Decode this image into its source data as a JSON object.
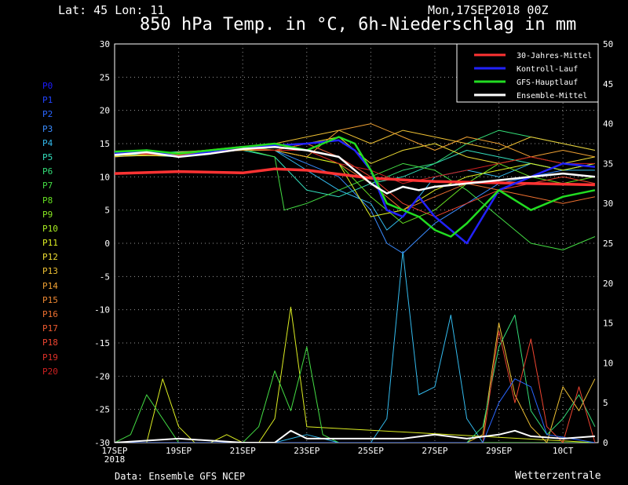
{
  "header": {
    "location": "Lat: 45 Lon: 11",
    "run": "Mon,17SEP2018 00Z",
    "title": "850 hPa Temp. in °C, 6h-Niederschlag in mm"
  },
  "footer": {
    "source": "Data: Ensemble GFS NCEP",
    "brand": "Wetterzentrale"
  },
  "members": [
    {
      "label": "P0",
      "color": "#1c1cff"
    },
    {
      "label": "P1",
      "color": "#2244ff"
    },
    {
      "label": "P2",
      "color": "#2a66ff"
    },
    {
      "label": "P3",
      "color": "#3a8cff"
    },
    {
      "label": "P4",
      "color": "#33bbee"
    },
    {
      "label": "P5",
      "color": "#33ddbb"
    },
    {
      "label": "P6",
      "color": "#33dd77"
    },
    {
      "label": "P7",
      "color": "#44dd44"
    },
    {
      "label": "P8",
      "color": "#66e022"
    },
    {
      "label": "P9",
      "color": "#88e622"
    },
    {
      "label": "P10",
      "color": "#aaee22"
    },
    {
      "label": "P11",
      "color": "#ddee22"
    },
    {
      "label": "P12",
      "color": "#eedd33"
    },
    {
      "label": "P13",
      "color": "#eec033"
    },
    {
      "label": "P14",
      "color": "#eea033"
    },
    {
      "label": "P15",
      "color": "#ee8833"
    },
    {
      "label": "P16",
      "color": "#ee7030"
    },
    {
      "label": "P17",
      "color": "#ee5a30"
    },
    {
      "label": "P18",
      "color": "#ee4430"
    },
    {
      "label": "P19",
      "color": "#dd3028"
    },
    {
      "label": "P20",
      "color": "#cc2020"
    }
  ],
  "chart_data": {
    "type": "line",
    "x_axis": {
      "labels": [
        "17SEP",
        "19SEP",
        "21SEP",
        "23SEP",
        "25SEP",
        "27SEP",
        "29SEP",
        "10CT"
      ],
      "year_label": "2018",
      "day_range": [
        0,
        15.1
      ]
    },
    "y_left": {
      "ticks": [
        30,
        25,
        20,
        15,
        10,
        5,
        0,
        -5,
        -10,
        -15,
        -20,
        -25,
        -30
      ],
      "range": [
        -30,
        30
      ]
    },
    "y_right": {
      "ticks": [
        50,
        45,
        40,
        35,
        30,
        25,
        20,
        15,
        10,
        5,
        0
      ],
      "range": [
        0,
        50
      ]
    },
    "grid": "dotted",
    "legend_position": "top-right",
    "legend": [
      {
        "label": "30-Jahres-Mittel",
        "color": "#ff3333"
      },
      {
        "label": "Kontroll-Lauf",
        "color": "#2222ff"
      },
      {
        "label": "GFS-Hauptlauf",
        "color": "#22dd22"
      },
      {
        "label": "Ensemble-Mittel",
        "color": "#ffffff"
      }
    ],
    "temperature_series": [
      {
        "name": "30-Jahres-Mittel",
        "color": "#ff3333",
        "x": [
          0,
          2,
          4,
          5,
          6,
          8,
          10,
          12,
          14,
          15
        ],
        "y": [
          10.5,
          10.8,
          10.6,
          11.2,
          11.0,
          9.8,
          9.3,
          9.1,
          8.9,
          8.8
        ]
      },
      {
        "name": "Kontroll-Lauf",
        "color": "#2222ff",
        "x": [
          0,
          1,
          2,
          3,
          4,
          5,
          6,
          7,
          7.5,
          8,
          8.5,
          9,
          9.5,
          10,
          10.5,
          11,
          12,
          13,
          14,
          15
        ],
        "y": [
          13.5,
          14,
          13,
          13.8,
          14.5,
          14.7,
          15,
          15.5,
          14,
          11,
          5,
          4,
          7,
          4,
          2,
          0,
          8,
          10,
          12,
          11.5
        ]
      },
      {
        "name": "GFS-Hauptlauf",
        "color": "#22dd22",
        "x": [
          0,
          1,
          2,
          3,
          4,
          5,
          6,
          7,
          7.5,
          8,
          8.5,
          9,
          9.5,
          10,
          10.5,
          11,
          12,
          13,
          14,
          15
        ],
        "y": [
          13.8,
          14,
          13.5,
          14,
          14.5,
          15,
          14,
          16,
          15,
          11,
          6,
          5,
          4,
          2,
          1,
          3,
          8,
          5,
          7,
          8
        ]
      },
      {
        "name": "Ensemble-Mittel",
        "color": "#ffffff",
        "x": [
          0,
          1,
          2,
          3,
          4,
          5,
          6,
          7,
          7.5,
          8,
          8.5,
          9,
          9.5,
          10,
          11,
          12,
          13,
          14,
          15
        ],
        "y": [
          13.3,
          13.7,
          13,
          13.5,
          14.2,
          14.5,
          14,
          13,
          11,
          9,
          7.5,
          8.5,
          8,
          8.5,
          9,
          9.5,
          10,
          10.5,
          10
        ]
      },
      {
        "name": "P3",
        "color": "#3a8cff",
        "x": [
          0,
          2,
          4,
          5,
          6,
          7,
          8,
          8.5,
          9,
          10,
          11,
          12,
          13,
          14,
          15
        ],
        "y": [
          13,
          13.5,
          14,
          14,
          12,
          10,
          5,
          0,
          -1.5,
          3,
          6,
          9,
          10,
          11,
          12
        ]
      },
      {
        "name": "P4",
        "color": "#33bbee",
        "x": [
          0,
          2,
          4,
          5,
          6,
          7,
          8,
          8.5,
          9,
          10,
          11,
          12,
          13,
          14,
          15
        ],
        "y": [
          13.5,
          13,
          14.5,
          14,
          11,
          8,
          6,
          2,
          4,
          10,
          11,
          10,
          12,
          11,
          11
        ]
      },
      {
        "name": "P5",
        "color": "#33ddbb",
        "x": [
          0,
          2,
          4,
          5,
          6,
          7,
          8,
          9,
          10,
          11,
          12,
          13,
          14,
          15
        ],
        "y": [
          13.2,
          13.8,
          14,
          13,
          8,
          7,
          9,
          10,
          12,
          14,
          13,
          12,
          11,
          12
        ]
      },
      {
        "name": "P6",
        "color": "#33dd77",
        "x": [
          0,
          2,
          4,
          5,
          6,
          7,
          8,
          9,
          10,
          11,
          12,
          13,
          14,
          15
        ],
        "y": [
          13.6,
          13.4,
          14.2,
          14,
          15,
          13,
          9,
          11,
          12,
          15,
          17,
          16,
          15,
          14
        ]
      },
      {
        "name": "P7",
        "color": "#44dd44",
        "x": [
          0,
          2,
          4,
          5,
          5.3,
          6,
          7,
          8,
          9,
          10,
          11,
          12,
          13,
          14,
          15
        ],
        "y": [
          13.6,
          13.2,
          14.2,
          13,
          5,
          6,
          8,
          10,
          12,
          11,
          8,
          4,
          0,
          -1,
          1
        ]
      },
      {
        "name": "P8",
        "color": "#66e022",
        "x": [
          0,
          2,
          4,
          5,
          6,
          7,
          8,
          9,
          10,
          11,
          12,
          13,
          14,
          15
        ],
        "y": [
          13.4,
          13.6,
          14.6,
          14,
          13,
          12,
          7,
          3,
          5,
          9,
          12,
          10,
          9,
          10
        ]
      },
      {
        "name": "P11",
        "color": "#ddee22",
        "x": [
          0,
          2,
          4,
          5,
          6,
          7,
          8,
          9,
          10,
          11,
          12,
          13,
          14,
          15
        ],
        "y": [
          13.1,
          13.3,
          14.1,
          14,
          13,
          12,
          4,
          5,
          8,
          10,
          11,
          12,
          11,
          12
        ]
      },
      {
        "name": "P12",
        "color": "#eedd33",
        "x": [
          0,
          2,
          4,
          5,
          6,
          7,
          8,
          9,
          10,
          11,
          12,
          13,
          14,
          15
        ],
        "y": [
          13.3,
          13.1,
          14.3,
          14,
          15,
          16,
          12,
          14,
          15,
          13,
          12,
          13,
          12,
          13
        ]
      },
      {
        "name": "P13",
        "color": "#eec033",
        "x": [
          0,
          2,
          4,
          5,
          6,
          7,
          8,
          9,
          10,
          11,
          12,
          13,
          14,
          15
        ],
        "y": [
          13.0,
          13.7,
          14.4,
          15,
          16,
          17,
          15,
          17,
          16,
          15,
          14,
          16,
          15,
          14
        ]
      },
      {
        "name": "P14",
        "color": "#eea033",
        "x": [
          0,
          2,
          4,
          5,
          6,
          7,
          8,
          9,
          10,
          11,
          12,
          13,
          14,
          15
        ],
        "y": [
          13.5,
          13.5,
          14.0,
          14,
          13,
          17,
          18,
          16,
          14,
          16,
          15,
          13,
          14,
          13
        ]
      },
      {
        "name": "P16",
        "color": "#ee7030",
        "x": [
          0,
          2,
          4,
          5,
          6,
          7,
          8,
          9,
          10,
          11,
          12,
          13,
          14,
          15
        ],
        "y": [
          13.7,
          13.3,
          14.5,
          15,
          14,
          12,
          9,
          5,
          7,
          9,
          8,
          7,
          6,
          7
        ]
      },
      {
        "name": "P18",
        "color": "#ee4430",
        "x": [
          0,
          2,
          4,
          5,
          6,
          7,
          8,
          9,
          10,
          11,
          12,
          13,
          14,
          15
        ],
        "y": [
          13.4,
          13.6,
          14.2,
          14,
          15,
          13,
          10,
          6,
          4,
          6,
          8,
          9,
          10,
          9
        ]
      },
      {
        "name": "P20",
        "color": "#cc2020",
        "x": [
          0,
          2,
          4,
          5,
          6,
          7,
          8,
          9,
          10,
          11,
          12,
          13,
          14,
          15
        ],
        "y": [
          13.6,
          13.2,
          14.3,
          14,
          14,
          12,
          11,
          9,
          10,
          11,
          12,
          13,
          12,
          12
        ]
      }
    ],
    "precipitation_series": [
      {
        "name": "P4",
        "color": "#33bbee",
        "x": [
          0,
          5,
          6,
          7,
          8,
          8.5,
          9,
          9.5,
          10,
          10.5,
          11,
          11.5,
          12,
          15
        ],
        "y": [
          0,
          0,
          1,
          0,
          0,
          3,
          24,
          6,
          7,
          16,
          3,
          0,
          0,
          0
        ]
      },
      {
        "name": "P11",
        "color": "#ddee22",
        "x": [
          0,
          1,
          1.5,
          2,
          2.5,
          3,
          3.5,
          4,
          4.5,
          5,
          5.5,
          6,
          15
        ],
        "y": [
          0,
          0,
          8,
          2,
          0,
          0,
          1,
          0,
          0,
          3,
          17,
          2,
          0
        ]
      },
      {
        "name": "P7",
        "color": "#44dd44",
        "x": [
          0,
          0.5,
          1,
          1.5,
          2,
          4,
          4.5,
          5,
          5.5,
          6,
          6.5,
          7,
          15
        ],
        "y": [
          0,
          1,
          6,
          3,
          0,
          0,
          2,
          9,
          4,
          12,
          1,
          0,
          0
        ]
      },
      {
        "name": "P13",
        "color": "#eec033",
        "x": [
          0,
          11,
          11.5,
          12,
          12.5,
          13,
          13.5,
          14,
          14.5,
          15
        ],
        "y": [
          0,
          0,
          1,
          15,
          6,
          2,
          0,
          7,
          4,
          8
        ]
      },
      {
        "name": "P6",
        "color": "#33dd77",
        "x": [
          0,
          11,
          11.5,
          12,
          12.5,
          13,
          13.5,
          14,
          14.5,
          15
        ],
        "y": [
          0,
          0,
          2,
          12,
          16,
          4,
          1,
          3,
          6,
          2
        ]
      },
      {
        "name": "P18",
        "color": "#ee4430",
        "x": [
          0,
          11.5,
          12,
          12.5,
          13,
          13.5,
          14,
          14.5,
          15
        ],
        "y": [
          0,
          0,
          14,
          5,
          13,
          2,
          0,
          7,
          0
        ]
      },
      {
        "name": "P2",
        "color": "#2a66ff",
        "x": [
          0,
          11.5,
          12,
          12.5,
          13,
          13.5,
          15
        ],
        "y": [
          0,
          0,
          5,
          8,
          7,
          1,
          0
        ]
      },
      {
        "name": "Ensemble-Mittel",
        "color": "#ffffff",
        "x": [
          0,
          2,
          4,
          5,
          5.5,
          6,
          8,
          9,
          10,
          11,
          12,
          12.5,
          13,
          14,
          15
        ],
        "y": [
          0,
          0.5,
          0,
          0,
          1.5,
          0.5,
          0.5,
          0.5,
          1,
          0.5,
          1,
          1.5,
          0.8,
          0.5,
          0.8
        ]
      }
    ]
  }
}
